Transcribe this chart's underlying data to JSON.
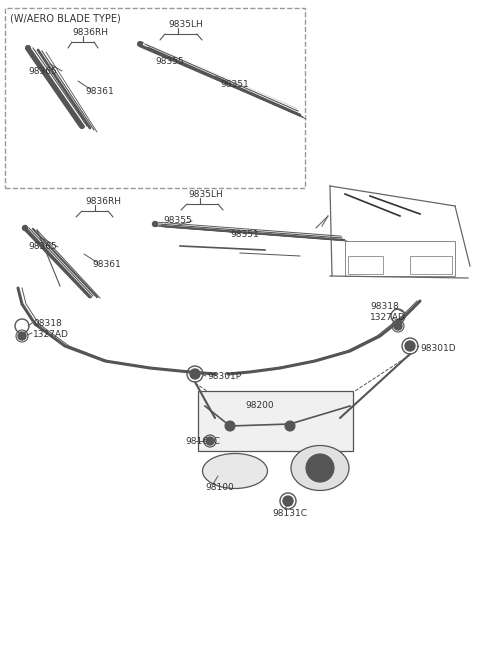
{
  "bg_color": "#ffffff",
  "lc": "#555555",
  "tc": "#333333",
  "aero_label": "(W/AERO BLADE TYPE)",
  "part_labels": {
    "9836RH": "9836RH",
    "9835LH": "9835LH",
    "98365": "98365",
    "98361": "98361",
    "98355": "98355",
    "98351": "98351",
    "98318": "98318",
    "1327AD": "1327AD",
    "98301P": "98301P",
    "98301D": "98301D",
    "98200": "98200",
    "98160C": "98160C",
    "98100": "98100",
    "98131C": "98131C"
  }
}
